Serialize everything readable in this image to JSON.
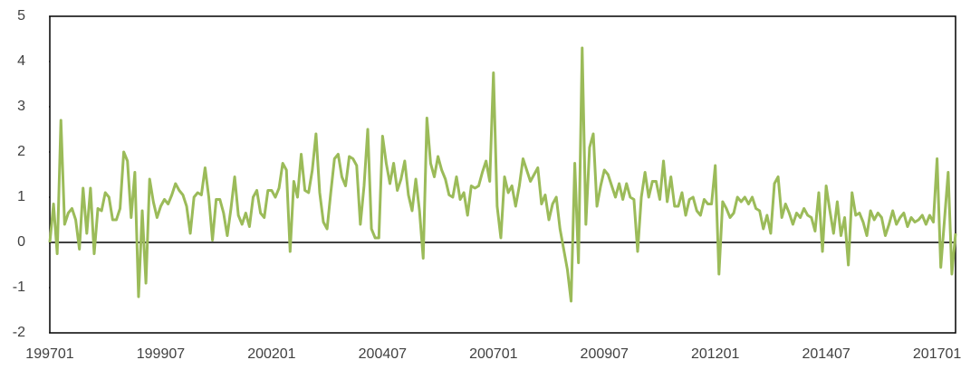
{
  "chart_data": {
    "type": "line",
    "categories": [
      "199701",
      null,
      null,
      null,
      null,
      null,
      null,
      null,
      null,
      null,
      null,
      null,
      null,
      null,
      null,
      null,
      null,
      null,
      null,
      null,
      null,
      null,
      null,
      null,
      null,
      null,
      null,
      null,
      null,
      null,
      "199907",
      null,
      null,
      null,
      null,
      null,
      null,
      null,
      null,
      null,
      null,
      null,
      null,
      null,
      null,
      null,
      null,
      null,
      null,
      null,
      null,
      null,
      null,
      null,
      null,
      null,
      null,
      null,
      null,
      null,
      "200201",
      null,
      null,
      null,
      null,
      null,
      null,
      null,
      null,
      null,
      null,
      null,
      null,
      null,
      null,
      null,
      null,
      null,
      null,
      null,
      null,
      null,
      null,
      null,
      null,
      null,
      null,
      null,
      null,
      null,
      "200407",
      null,
      null,
      null,
      null,
      null,
      null,
      null,
      null,
      null,
      null,
      null,
      null,
      null,
      null,
      null,
      null,
      null,
      null,
      null,
      null,
      null,
      null,
      null,
      null,
      null,
      null,
      null,
      null,
      null,
      "200701",
      null,
      null,
      null,
      null,
      null,
      null,
      null,
      null,
      null,
      null,
      null,
      null,
      null,
      null,
      null,
      null,
      null,
      null,
      null,
      null,
      null,
      null,
      null,
      null,
      null,
      null,
      null,
      null,
      null,
      "200907",
      null,
      null,
      null,
      null,
      null,
      null,
      null,
      null,
      null,
      null,
      null,
      null,
      null,
      null,
      null,
      null,
      null,
      null,
      null,
      null,
      null,
      null,
      null,
      null,
      null,
      null,
      null,
      null,
      null,
      "201201",
      null,
      null,
      null,
      null,
      null,
      null,
      null,
      null,
      null,
      null,
      null,
      null,
      null,
      null,
      null,
      null,
      null,
      null,
      null,
      null,
      null,
      null,
      null,
      null,
      null,
      null,
      null,
      null,
      null,
      "201407",
      null,
      null,
      null,
      null,
      null,
      null,
      null,
      null,
      null,
      null,
      null,
      null,
      null,
      null,
      null,
      null,
      null,
      null,
      null,
      null,
      null,
      null,
      null,
      null,
      null,
      null,
      null,
      null,
      null,
      "201701",
      null,
      null,
      null,
      null,
      null
    ],
    "values": [
      0,
      0.85,
      -0.25,
      2.7,
      0.4,
      0.65,
      0.75,
      0.5,
      -0.15,
      1.2,
      0.2,
      1.2,
      -0.25,
      0.75,
      0.7,
      1.1,
      1.0,
      0.5,
      0.5,
      0.75,
      2.0,
      1.8,
      0.55,
      1.55,
      -1.2,
      0.7,
      -0.9,
      1.4,
      0.9,
      0.55,
      0.8,
      0.95,
      0.85,
      1.05,
      1.3,
      1.15,
      1.05,
      0.8,
      0.2,
      1.0,
      1.1,
      1.05,
      1.65,
      1.0,
      0.05,
      0.95,
      0.95,
      0.65,
      0.15,
      0.75,
      1.45,
      0.6,
      0.4,
      0.65,
      0.35,
      1.0,
      1.15,
      0.65,
      0.55,
      1.15,
      1.15,
      1.0,
      1.2,
      1.75,
      1.6,
      -0.2,
      1.35,
      1.0,
      1.95,
      1.15,
      1.1,
      1.6,
      2.4,
      1.1,
      0.45,
      0.3,
      1.1,
      1.85,
      1.95,
      1.45,
      1.25,
      1.9,
      1.85,
      1.7,
      0.4,
      1.25,
      2.5,
      0.3,
      0.1,
      0.1,
      2.35,
      1.75,
      1.3,
      1.75,
      1.15,
      1.4,
      1.8,
      1.05,
      0.7,
      1.4,
      0.7,
      -0.35,
      2.75,
      1.75,
      1.45,
      1.9,
      1.6,
      1.4,
      1.05,
      1.0,
      1.45,
      0.95,
      1.1,
      0.6,
      1.25,
      1.2,
      1.25,
      1.55,
      1.8,
      1.35,
      3.75,
      0.8,
      0.1,
      1.45,
      1.1,
      1.25,
      0.8,
      1.25,
      1.85,
      1.6,
      1.35,
      1.5,
      1.65,
      0.85,
      1.05,
      0.5,
      0.85,
      1.0,
      0.3,
      -0.15,
      -0.6,
      -1.3,
      1.75,
      -0.45,
      4.3,
      0.4,
      2.1,
      2.4,
      0.8,
      1.25,
      1.6,
      1.5,
      1.25,
      1.0,
      1.3,
      0.95,
      1.3,
      1.0,
      0.95,
      -0.2,
      1.0,
      1.55,
      1.0,
      1.35,
      1.35,
      0.95,
      1.8,
      0.9,
      1.45,
      0.8,
      0.8,
      1.1,
      0.6,
      0.95,
      1.0,
      0.7,
      0.6,
      0.95,
      0.85,
      0.85,
      1.7,
      -0.7,
      0.9,
      0.75,
      0.55,
      0.65,
      1.0,
      0.9,
      1.0,
      0.85,
      1.0,
      0.75,
      0.7,
      0.3,
      0.6,
      0.2,
      1.3,
      1.45,
      0.55,
      0.85,
      0.65,
      0.4,
      0.65,
      0.55,
      0.75,
      0.6,
      0.55,
      0.25,
      1.1,
      -0.2,
      1.25,
      0.7,
      0.2,
      0.9,
      0.15,
      0.55,
      -0.5,
      1.1,
      0.6,
      0.65,
      0.45,
      0.15,
      0.7,
      0.5,
      0.65,
      0.55,
      0.15,
      0.4,
      0.7,
      0.4,
      0.55,
      0.65,
      0.35,
      0.55,
      0.45,
      0.5,
      0.6,
      0.4,
      0.6,
      0.45,
      1.85,
      -0.55,
      0.5,
      1.55,
      -0.7,
      0.2
    ],
    "color": "#9bbb59",
    "ylim": [
      -2,
      5
    ],
    "yticks": [
      -2,
      -1,
      0,
      1,
      2,
      3,
      4,
      5
    ],
    "grid": false
  }
}
